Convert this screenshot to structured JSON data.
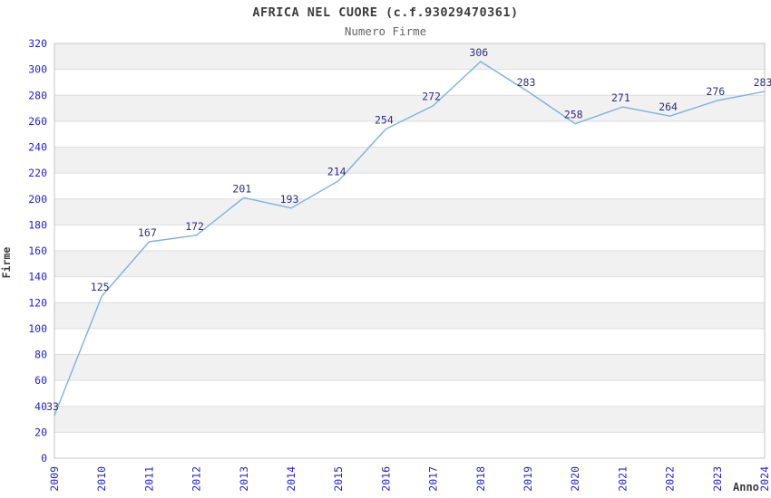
{
  "header": {
    "title": "AFRICA NEL CUORE (c.f.93029470361)",
    "subtitle": "Numero Firme"
  },
  "chart_data": {
    "type": "line",
    "title": "AFRICA NEL CUORE (c.f.93029470361)",
    "subtitle": "Numero Firme",
    "xlabel": "Anno",
    "ylabel": "Firme",
    "categories": [
      "2009",
      "2010",
      "2011",
      "2012",
      "2013",
      "2014",
      "2015",
      "2016",
      "2017",
      "2018",
      "2019",
      "2020",
      "2021",
      "2022",
      "2023",
      "2024"
    ],
    "values": [
      33,
      125,
      167,
      172,
      201,
      193,
      214,
      254,
      272,
      306,
      283,
      258,
      271,
      264,
      276,
      283
    ],
    "ylim": [
      0,
      320
    ],
    "ytick_step": 20,
    "grid": true,
    "legend_position": "none",
    "band_fill_rule": "alternating-20",
    "colors": {
      "line": "#7db1e2",
      "tick_label": "#2323cd",
      "data_label": "#2e2e85",
      "band": "#f1f1f1",
      "gridline": "#dddddd",
      "plot_border": "#c5c5c5",
      "title": "#3c3c3c",
      "subtitle": "#666666",
      "axis_title": "#3c3c3c",
      "background": "#ffffff"
    }
  }
}
